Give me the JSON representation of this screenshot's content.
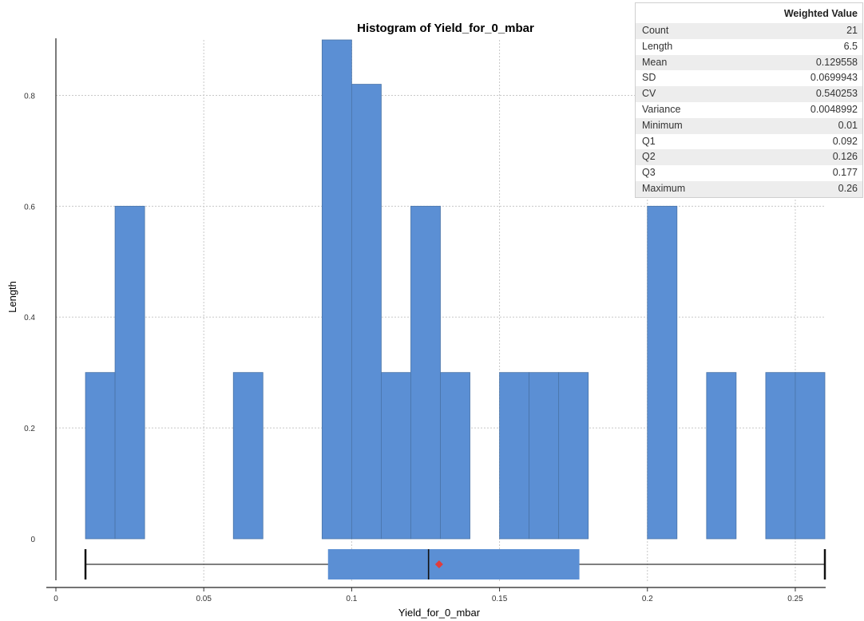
{
  "chart_data": {
    "type": "histogram",
    "title": "Histogram of Yield_for_0_mbar",
    "xlabel": "Yield_for_0_mbar",
    "ylabel": "Length",
    "xlim": [
      0,
      0.26
    ],
    "ylim": [
      0,
      0.9
    ],
    "x_ticks": [
      "0",
      "0.05",
      "0.1",
      "0.15",
      "0.2",
      "0.25"
    ],
    "y_ticks": [
      "0",
      "0.2",
      "0.4",
      "0.6",
      "0.8"
    ],
    "grid": true,
    "bins": [
      {
        "x0": 0.01,
        "x1": 0.02,
        "value": 0.3
      },
      {
        "x0": 0.02,
        "x1": 0.03,
        "value": 0.6
      },
      {
        "x0": 0.06,
        "x1": 0.07,
        "value": 0.3
      },
      {
        "x0": 0.09,
        "x1": 0.1,
        "value": 0.9
      },
      {
        "x0": 0.1,
        "x1": 0.11,
        "value": 0.82
      },
      {
        "x0": 0.11,
        "x1": 0.12,
        "value": 0.3
      },
      {
        "x0": 0.12,
        "x1": 0.13,
        "value": 0.6
      },
      {
        "x0": 0.13,
        "x1": 0.14,
        "value": 0.3
      },
      {
        "x0": 0.15,
        "x1": 0.16,
        "value": 0.3
      },
      {
        "x0": 0.16,
        "x1": 0.17,
        "value": 0.3
      },
      {
        "x0": 0.17,
        "x1": 0.18,
        "value": 0.3
      },
      {
        "x0": 0.2,
        "x1": 0.21,
        "value": 0.6
      },
      {
        "x0": 0.22,
        "x1": 0.23,
        "value": 0.3
      },
      {
        "x0": 0.24,
        "x1": 0.25,
        "value": 0.3
      },
      {
        "x0": 0.25,
        "x1": 0.26,
        "value": 0.3
      }
    ],
    "boxplot": {
      "min": 0.01,
      "q1": 0.092,
      "median": 0.126,
      "mean": 0.129558,
      "q3": 0.177,
      "max": 0.26
    },
    "bar_color": "#5b8fd4",
    "bar_edge_color": "#4a74a8",
    "mean_marker_color": "#e03c3c"
  },
  "stats_table": {
    "header": "Weighted Value",
    "rows": [
      {
        "label": "Count",
        "value": "21"
      },
      {
        "label": "Length",
        "value": "6.5"
      },
      {
        "label": "Mean",
        "value": "0.129558"
      },
      {
        "label": "SD",
        "value": "0.0699943"
      },
      {
        "label": "CV",
        "value": "0.540253"
      },
      {
        "label": "Variance",
        "value": "0.0048992"
      },
      {
        "label": "Minimum",
        "value": "0.01"
      },
      {
        "label": "Q1",
        "value": "0.092"
      },
      {
        "label": "Q2",
        "value": "0.126"
      },
      {
        "label": "Q3",
        "value": "0.177"
      },
      {
        "label": "Maximum",
        "value": "0.26"
      }
    ]
  }
}
